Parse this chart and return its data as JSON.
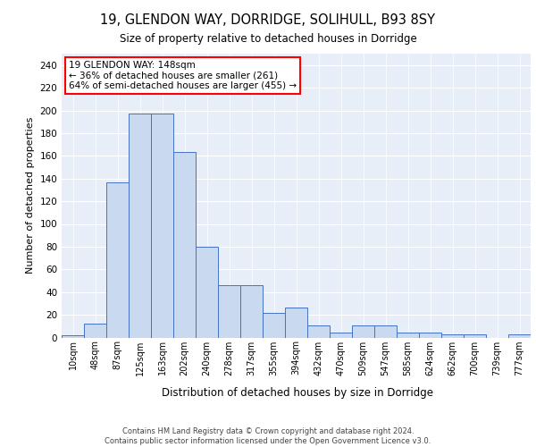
{
  "title1": "19, GLENDON WAY, DORRIDGE, SOLIHULL, B93 8SY",
  "title2": "Size of property relative to detached houses in Dorridge",
  "xlabel": "Distribution of detached houses by size in Dorridge",
  "ylabel": "Number of detached properties",
  "bar_labels": [
    "10sqm",
    "48sqm",
    "87sqm",
    "125sqm",
    "163sqm",
    "202sqm",
    "240sqm",
    "278sqm",
    "317sqm",
    "355sqm",
    "394sqm",
    "432sqm",
    "470sqm",
    "509sqm",
    "547sqm",
    "585sqm",
    "624sqm",
    "662sqm",
    "700sqm",
    "739sqm",
    "777sqm"
  ],
  "bar_values": [
    2,
    12,
    137,
    197,
    197,
    163,
    80,
    46,
    46,
    22,
    26,
    11,
    4,
    11,
    11,
    4,
    4,
    3,
    3,
    0,
    3
  ],
  "bar_color": "#c9d9f0",
  "bar_edge_color": "#4472c4",
  "annotation_text": "19 GLENDON WAY: 148sqm\n← 36% of detached houses are smaller (261)\n64% of semi-detached houses are larger (455) →",
  "ylim": [
    0,
    250
  ],
  "yticks": [
    0,
    20,
    40,
    60,
    80,
    100,
    120,
    140,
    160,
    180,
    200,
    220,
    240
  ],
  "plot_bg_color": "#e8eef8",
  "footer_text": "Contains HM Land Registry data © Crown copyright and database right 2024.\nContains public sector information licensed under the Open Government Licence v3.0."
}
